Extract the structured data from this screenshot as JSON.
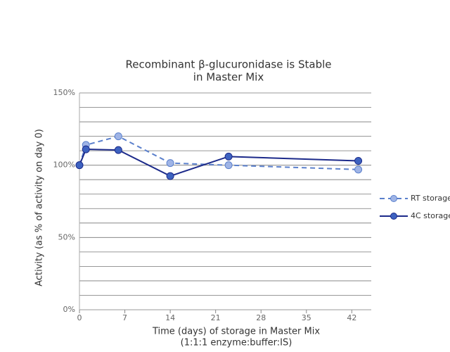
{
  "chart_data": {
    "type": "line",
    "title": [
      "Recombinant β-glucuronidase is Stable",
      "in Master Mix"
    ],
    "x_label": [
      "Time (days) of storage in Master Mix",
      "(1:1:1 enzyme:buffer:IS)"
    ],
    "y_label": "Activity (as % of activity on day 0)",
    "xlim": [
      0,
      45
    ],
    "xticks": [
      0,
      7,
      14,
      21,
      28,
      35,
      42
    ],
    "ylim": [
      0,
      150
    ],
    "yticks": [
      {
        "value": 0,
        "label": "0%"
      },
      {
        "value": 50,
        "label": "50%"
      },
      {
        "value": 100,
        "label": "100%"
      },
      {
        "value": 150,
        "label": "150%"
      }
    ],
    "minor_grid": [
      10,
      20,
      30,
      40,
      60,
      70,
      80,
      90,
      110,
      120,
      130,
      140
    ],
    "grid": true,
    "legend": "right",
    "series": [
      {
        "name": "RT storage",
        "color": "#5b80cc",
        "marker_fill": "#9fb4e6",
        "dashed": true,
        "x": [
          0,
          1,
          6,
          14,
          23,
          43
        ],
        "values": [
          100,
          114,
          120,
          101.5,
          100,
          97
        ]
      },
      {
        "name": "4C storage",
        "color": "#1c2a8a",
        "marker_fill": "#3d62c0",
        "dashed": false,
        "x": [
          0,
          1,
          6,
          14,
          23,
          43
        ],
        "values": [
          100,
          111,
          110.5,
          92.5,
          106,
          103
        ]
      }
    ]
  }
}
